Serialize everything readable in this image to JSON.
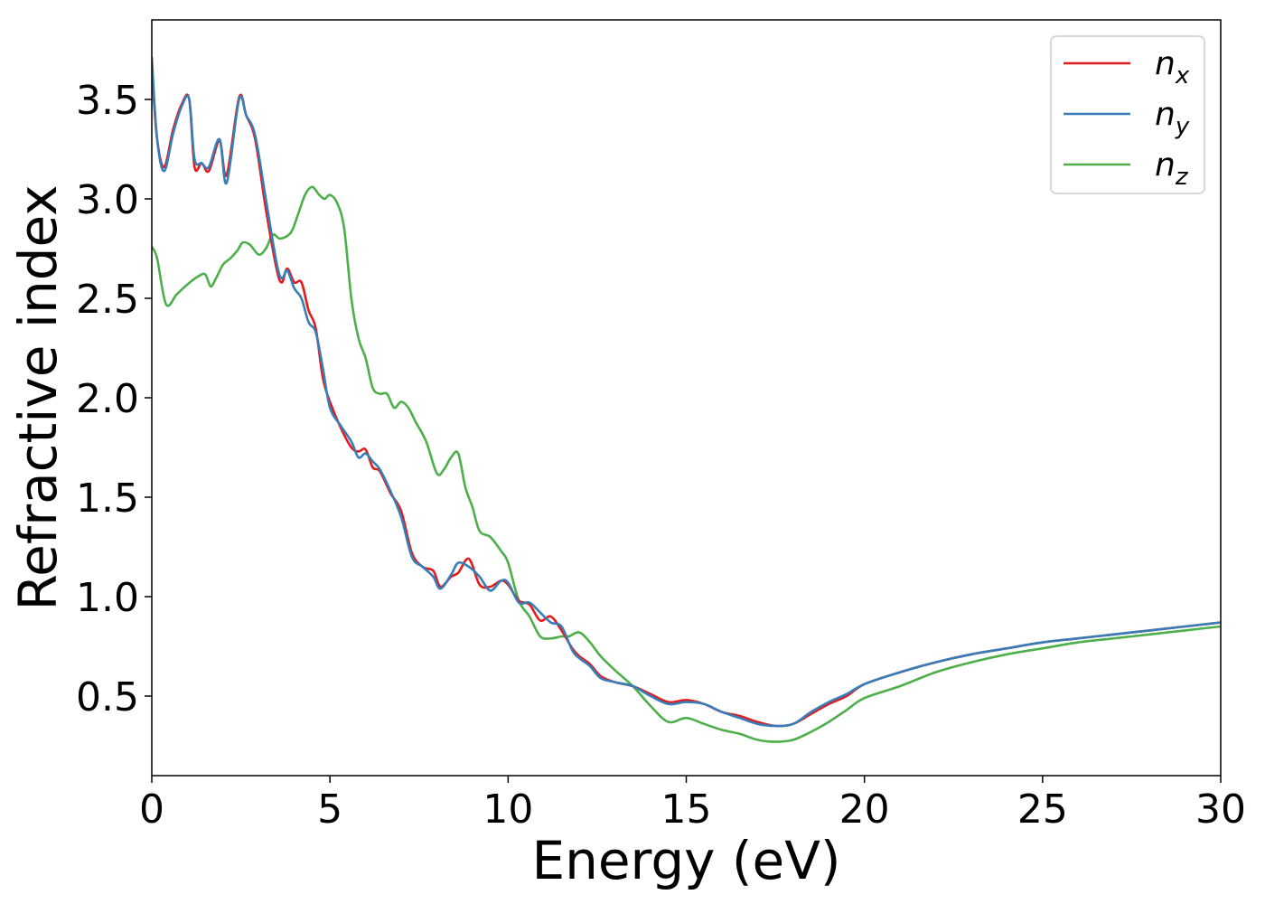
{
  "chart_data": {
    "type": "line",
    "title": "",
    "xlabel": "Energy (eV)",
    "ylabel": "Refractive index",
    "xlim": [
      0,
      30
    ],
    "ylim": [
      0.1,
      3.9
    ],
    "xticks": [
      0,
      5,
      10,
      15,
      20,
      25,
      30
    ],
    "xtick_labels": [
      "0",
      "5",
      "10",
      "15",
      "20",
      "25",
      "30"
    ],
    "yticks": [
      0.5,
      1.0,
      1.5,
      2.0,
      2.5,
      3.0,
      3.5
    ],
    "ytick_labels": [
      "0.5",
      "1.0",
      "1.5",
      "2.0",
      "2.5",
      "3.0",
      "3.5"
    ],
    "grid": false,
    "legend_position": "top-right",
    "series": [
      {
        "name": "n_x",
        "label_main": "n",
        "label_sub": "x",
        "color": "#e41a1c",
        "x": [
          0,
          0.15,
          0.35,
          0.6,
          0.85,
          1.05,
          1.2,
          1.4,
          1.6,
          1.9,
          2.1,
          2.45,
          2.65,
          2.9,
          3.2,
          3.5,
          3.65,
          3.8,
          4.0,
          4.2,
          4.4,
          4.6,
          4.8,
          5.0,
          5.3,
          5.6,
          5.8,
          6.0,
          6.2,
          6.4,
          6.7,
          7.0,
          7.3,
          7.6,
          7.9,
          8.1,
          8.4,
          8.6,
          8.9,
          9.2,
          9.5,
          9.8,
          10.0,
          10.3,
          10.6,
          10.9,
          11.2,
          11.5,
          11.8,
          12.0,
          12.3,
          12.6,
          13.0,
          13.5,
          14.0,
          14.5,
          15.0,
          15.5,
          16.0,
          16.5,
          17.0,
          17.5,
          18.0,
          18.5,
          19.0,
          19.5,
          20.0,
          21.0,
          22.0,
          23.0,
          24.0,
          25.0,
          26.0,
          27.0,
          28.0,
          29.0,
          30.0
        ],
        "values": [
          3.65,
          3.3,
          3.16,
          3.35,
          3.48,
          3.5,
          3.16,
          3.18,
          3.14,
          3.29,
          3.12,
          3.51,
          3.42,
          3.3,
          2.95,
          2.65,
          2.58,
          2.65,
          2.58,
          2.58,
          2.44,
          2.35,
          2.1,
          1.98,
          1.85,
          1.75,
          1.73,
          1.74,
          1.65,
          1.63,
          1.52,
          1.43,
          1.22,
          1.15,
          1.13,
          1.05,
          1.1,
          1.12,
          1.19,
          1.06,
          1.05,
          1.08,
          1.06,
          0.98,
          0.96,
          0.88,
          0.9,
          0.83,
          0.74,
          0.7,
          0.66,
          0.6,
          0.57,
          0.55,
          0.51,
          0.47,
          0.48,
          0.46,
          0.42,
          0.4,
          0.37,
          0.35,
          0.36,
          0.41,
          0.46,
          0.5,
          0.56,
          0.62,
          0.67,
          0.71,
          0.74,
          0.77,
          0.79,
          0.81,
          0.83,
          0.85,
          0.87
        ]
      },
      {
        "name": "n_y",
        "label_main": "n",
        "label_sub": "y",
        "color": "#377eb8",
        "x": [
          0,
          0.15,
          0.35,
          0.6,
          0.85,
          1.05,
          1.2,
          1.4,
          1.6,
          1.9,
          2.1,
          2.45,
          2.65,
          2.9,
          3.2,
          3.5,
          3.65,
          3.8,
          4.0,
          4.2,
          4.4,
          4.6,
          4.8,
          5.0,
          5.3,
          5.6,
          5.8,
          6.0,
          6.2,
          6.4,
          6.7,
          7.0,
          7.3,
          7.6,
          7.9,
          8.1,
          8.4,
          8.6,
          8.9,
          9.2,
          9.5,
          9.8,
          10.0,
          10.3,
          10.6,
          10.9,
          11.2,
          11.5,
          11.8,
          12.0,
          12.3,
          12.6,
          13.0,
          13.5,
          14.0,
          14.5,
          15.0,
          15.5,
          16.0,
          16.5,
          17.0,
          17.5,
          18.0,
          18.5,
          19.0,
          19.5,
          20.0,
          21.0,
          22.0,
          23.0,
          24.0,
          25.0,
          26.0,
          27.0,
          28.0,
          29.0,
          30.0
        ],
        "values": [
          3.71,
          3.3,
          3.14,
          3.33,
          3.47,
          3.5,
          3.2,
          3.18,
          3.16,
          3.3,
          3.08,
          3.5,
          3.42,
          3.32,
          3.0,
          2.68,
          2.6,
          2.64,
          2.55,
          2.5,
          2.38,
          2.33,
          2.15,
          1.95,
          1.86,
          1.78,
          1.7,
          1.72,
          1.68,
          1.64,
          1.53,
          1.4,
          1.2,
          1.15,
          1.1,
          1.04,
          1.11,
          1.17,
          1.15,
          1.1,
          1.03,
          1.08,
          1.07,
          0.97,
          0.97,
          0.92,
          0.87,
          0.85,
          0.73,
          0.69,
          0.65,
          0.59,
          0.57,
          0.55,
          0.5,
          0.46,
          0.47,
          0.46,
          0.42,
          0.39,
          0.36,
          0.35,
          0.36,
          0.42,
          0.47,
          0.51,
          0.56,
          0.62,
          0.67,
          0.71,
          0.74,
          0.77,
          0.79,
          0.81,
          0.83,
          0.85,
          0.87
        ]
      },
      {
        "name": "n_z",
        "label_main": "n",
        "label_sub": "z",
        "color": "#4daf4a",
        "x": [
          0,
          0.15,
          0.4,
          0.7,
          1.0,
          1.3,
          1.5,
          1.65,
          1.8,
          2.0,
          2.2,
          2.4,
          2.55,
          2.75,
          3.0,
          3.2,
          3.4,
          3.6,
          3.9,
          4.1,
          4.3,
          4.5,
          4.7,
          4.85,
          5.0,
          5.2,
          5.4,
          5.6,
          5.8,
          6.0,
          6.2,
          6.4,
          6.6,
          6.8,
          7.0,
          7.2,
          7.4,
          7.7,
          8.0,
          8.2,
          8.4,
          8.6,
          8.8,
          9.0,
          9.2,
          9.5,
          9.8,
          10.0,
          10.3,
          10.6,
          10.9,
          11.2,
          11.5,
          11.7,
          12.0,
          12.3,
          12.6,
          13.0,
          13.5,
          14.0,
          14.5,
          15.0,
          15.5,
          16.0,
          16.5,
          17.0,
          17.5,
          18.0,
          18.5,
          19.0,
          19.5,
          20.0,
          21.0,
          22.0,
          23.0,
          24.0,
          25.0,
          26.0,
          27.0,
          28.0,
          29.0,
          30.0
        ],
        "values": [
          2.76,
          2.7,
          2.47,
          2.52,
          2.57,
          2.61,
          2.62,
          2.56,
          2.6,
          2.67,
          2.7,
          2.74,
          2.78,
          2.77,
          2.72,
          2.75,
          2.82,
          2.8,
          2.83,
          2.92,
          3.02,
          3.06,
          3.02,
          3.0,
          3.02,
          2.98,
          2.85,
          2.5,
          2.3,
          2.2,
          2.05,
          2.02,
          2.02,
          1.95,
          1.98,
          1.95,
          1.88,
          1.78,
          1.62,
          1.64,
          1.7,
          1.72,
          1.55,
          1.45,
          1.33,
          1.3,
          1.23,
          1.17,
          0.98,
          0.9,
          0.8,
          0.79,
          0.8,
          0.8,
          0.82,
          0.77,
          0.7,
          0.63,
          0.55,
          0.45,
          0.37,
          0.39,
          0.36,
          0.33,
          0.31,
          0.28,
          0.27,
          0.28,
          0.32,
          0.37,
          0.43,
          0.49,
          0.55,
          0.62,
          0.67,
          0.71,
          0.74,
          0.77,
          0.79,
          0.81,
          0.83,
          0.85
        ]
      }
    ]
  }
}
